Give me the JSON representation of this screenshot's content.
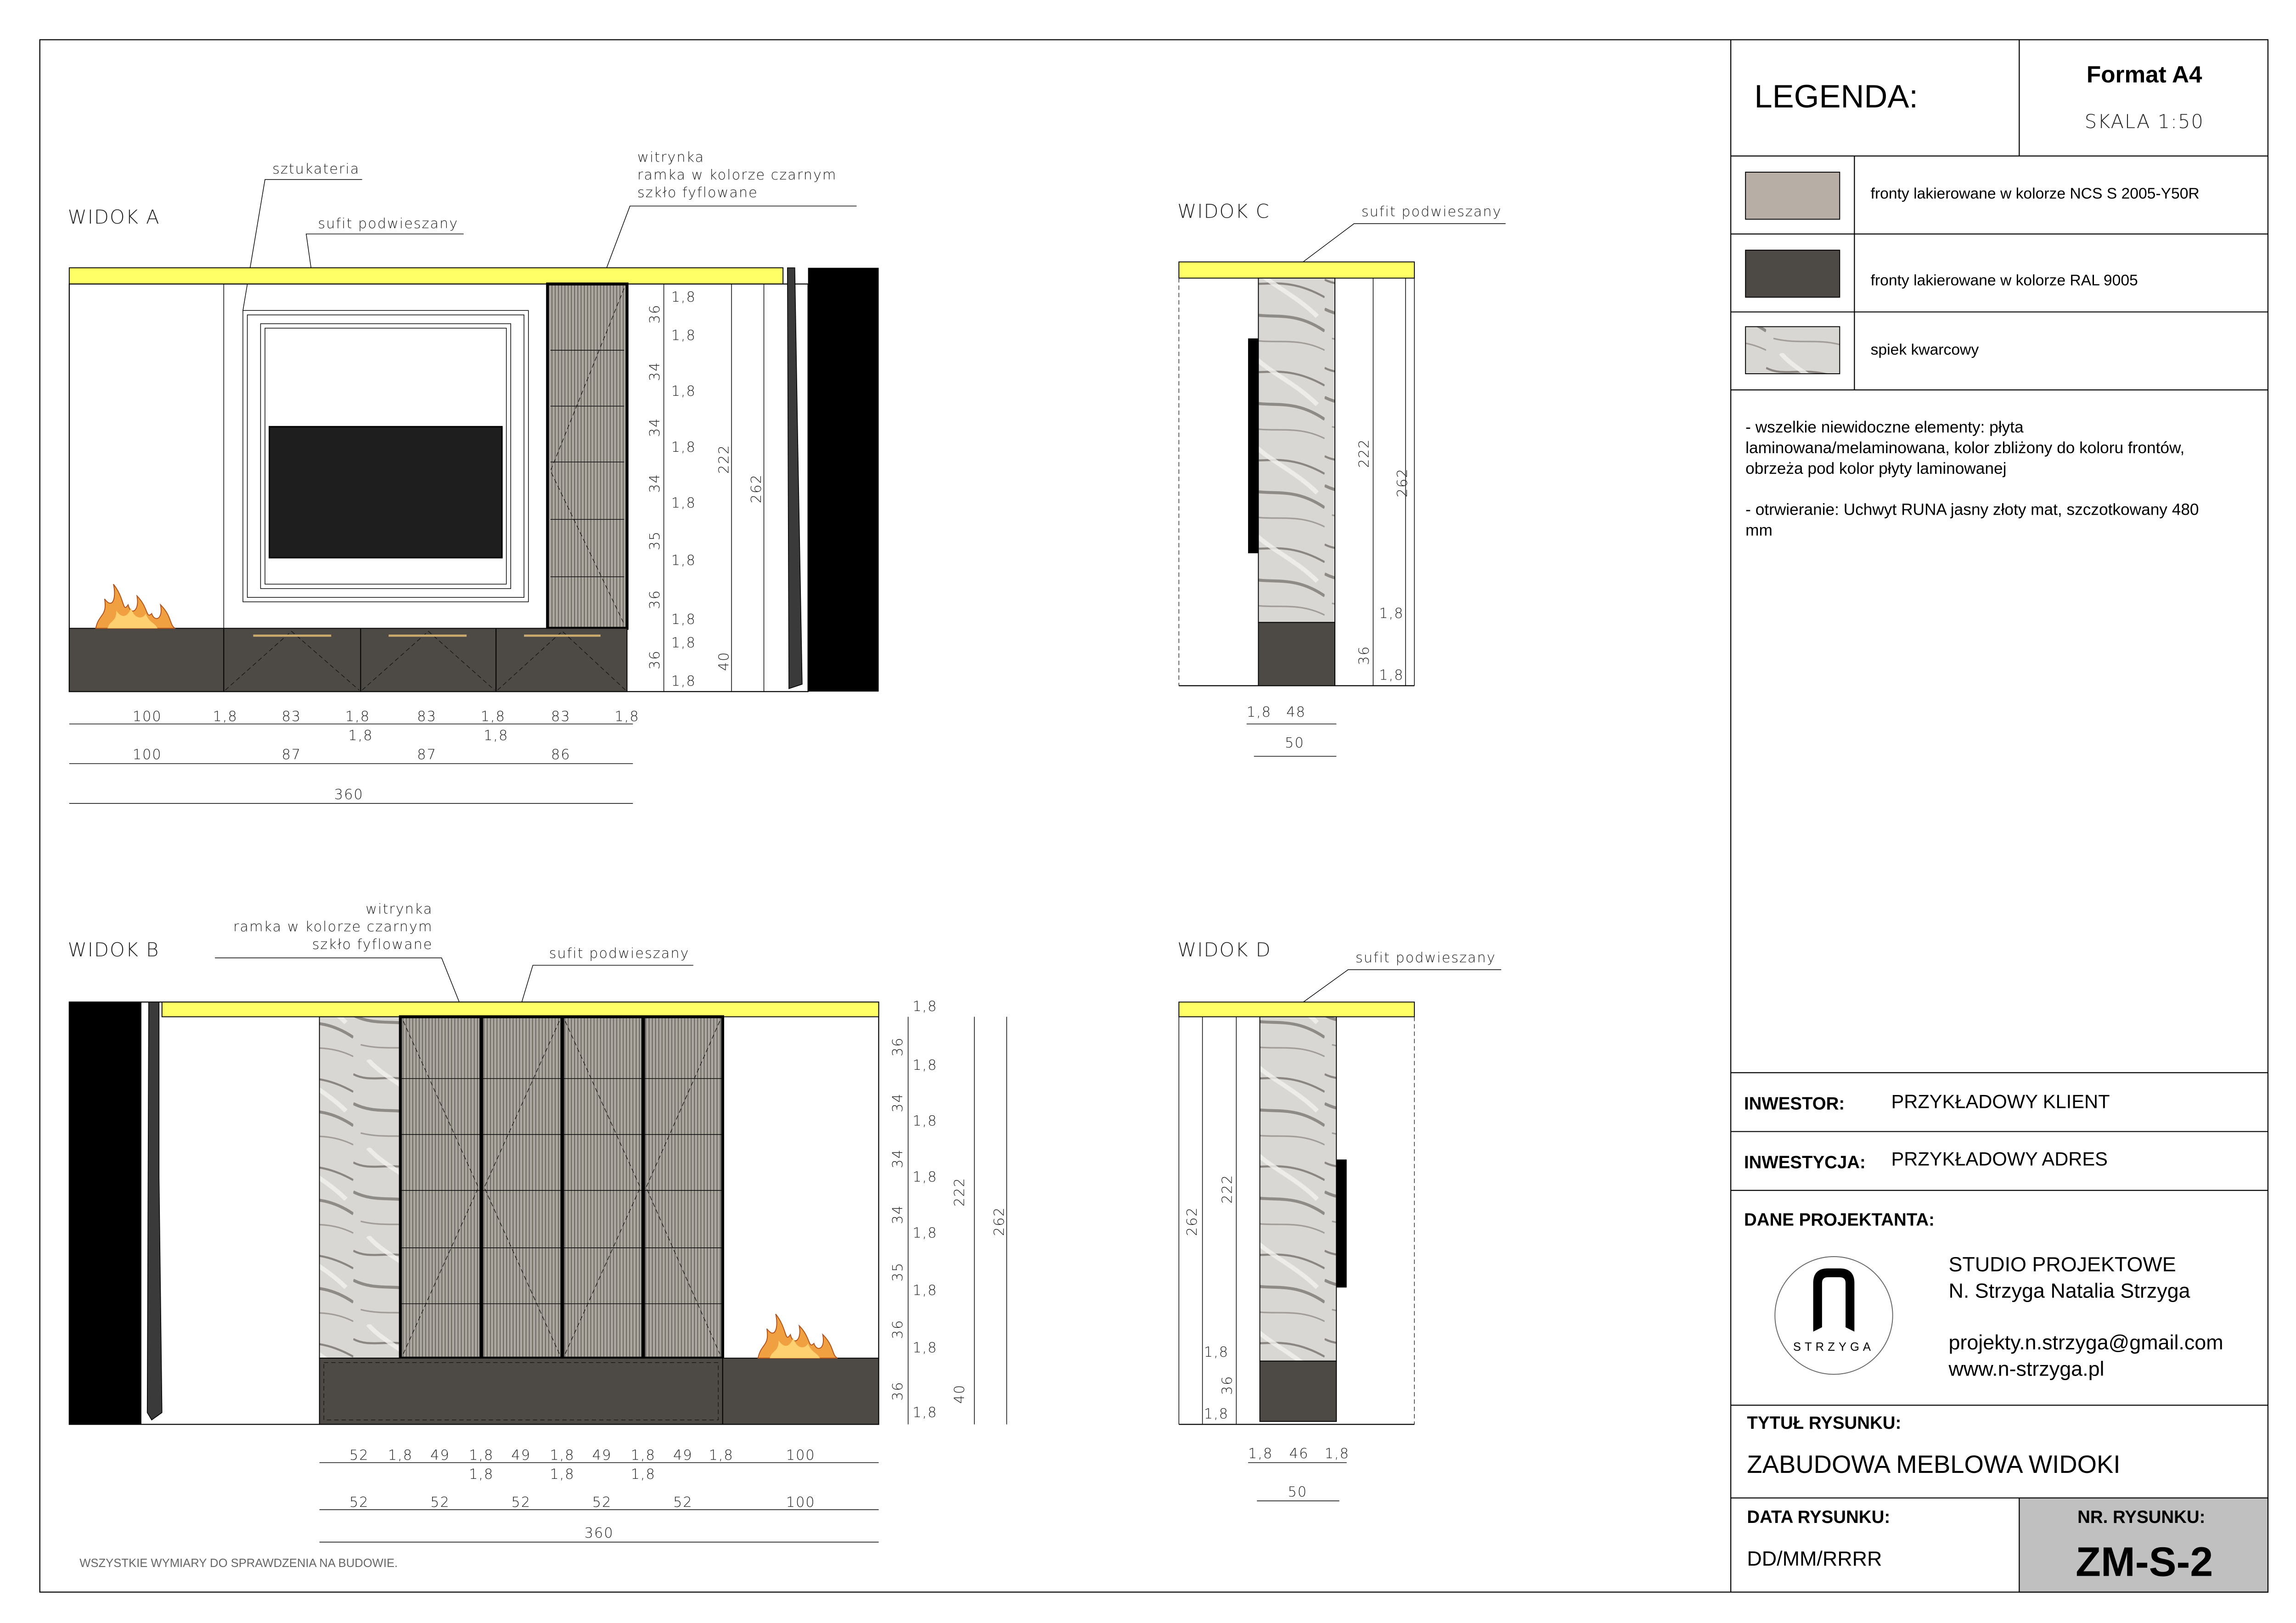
{
  "legend": {
    "title": "LEGENDA:",
    "format": "Format A4",
    "scale": "SKALA  1:50",
    "items": [
      {
        "label": "fronty lakierowane w kolorze NCS S 2005-Y50R",
        "color": "#b7aea6"
      },
      {
        "label": "fronty lakierowane w kolorze RAL 9005",
        "color": "#4d4a45"
      },
      {
        "label": "spiek kwarcowy",
        "color": "#d8d6d2"
      }
    ],
    "notes": [
      "- wszelkie niewidoczne elementy: płyta",
      "laminowana/melaminowana, kolor zbliżony do koloru frontów,",
      "obrzeża pod kolor płyty laminowanej",
      "- otrwieranie: Uchwyt RUNA jasny złoty mat, szczotkowany 480",
      "mm"
    ]
  },
  "title_block": {
    "investor_label": "INWESTOR:",
    "investor": "PRZYKŁADOWY KLIENT",
    "investment_label": "INWESTYCJA:",
    "investment": "PRZYKŁADOWY ADRES",
    "designer_label": "DANE PROJEKTANTA:",
    "designer_lines": [
      "STUDIO PROJEKTOWE",
      "N. Strzyga Natalia Strzyga",
      "projekty.n.strzyga@gmail.com",
      "www.n-strzyga.pl"
    ],
    "logo_text": "STRZYGA",
    "drawing_title_label": "TYTUŁ RYSUNKU:",
    "drawing_title": "ZABUDOWA MEBLOWA WIDOKI",
    "date_label": "DATA RYSUNKU:",
    "date": "DD/MM/RRRR",
    "number_label": "NR. RYSUNKU:",
    "number": "ZM-S-2"
  },
  "colors": {
    "ceiling": "#ffff66",
    "dark_front": "#4d4a45",
    "glass": "#aaa59d",
    "title_gray": "#c0c0c0"
  },
  "views": {
    "a": {
      "title": "WIDOK  A",
      "notes": {
        "stucco": "sztukateria",
        "ceiling": "sufit  podwieszany",
        "vitrine": [
          "witrynka",
          "ramka  w  kolorze  czarnym",
          "szkło  fyflowane"
        ]
      },
      "dims_vertical": [
        "36",
        "34",
        "34",
        "34",
        "35",
        "36",
        "36"
      ],
      "dims_thk": [
        "1,8",
        "1,8",
        "1,8",
        "1,8",
        "1,8",
        "1,8",
        "1,8",
        "1,8",
        "1,8"
      ],
      "dims_heights": [
        "222",
        "262",
        "40"
      ],
      "dims_row1": [
        "100",
        "1,8",
        "83",
        "1,8",
        "83",
        "1,8",
        "83",
        "1,8"
      ],
      "dims_row1_sub": [
        "1,8",
        "1,8"
      ],
      "dims_row2": [
        "100",
        "87",
        "87",
        "86"
      ],
      "total": "360"
    },
    "b": {
      "title": "WIDOK  B",
      "notes": {
        "ceiling": "sufit  podwieszany",
        "vitrine": [
          "witrynka",
          "ramka  w  kolorze  czarnym",
          "szkło  fyflowane"
        ]
      },
      "dims_vertical": [
        "36",
        "34",
        "34",
        "34",
        "35",
        "36",
        "36"
      ],
      "dims_thk": [
        "1,8",
        "1,8",
        "1,8",
        "1,8",
        "1,8",
        "1,8",
        "1,8",
        "1,8"
      ],
      "dims_heights": [
        "222",
        "262",
        "40"
      ],
      "dims_row1": [
        "52",
        "1,8",
        "49",
        "1,8",
        "49",
        "1,8",
        "49",
        "1,8",
        "49",
        "1,8",
        "100"
      ],
      "dims_row1_sub": [
        "1,8",
        "1,8",
        "1,8"
      ],
      "dims_row2": [
        "52",
        "52",
        "52",
        "52",
        "52",
        "100"
      ],
      "total": "360",
      "footnote": "WSZYSTKIE WYMIARY DO SPRAWDZENIA NA BUDOWIE."
    },
    "c": {
      "title": "WIDOK  C",
      "notes": {
        "ceiling": "sufit  podwieszany"
      },
      "dims_heights": [
        "222",
        "262",
        "36"
      ],
      "dims_thk": [
        "1,8",
        "1,8"
      ],
      "dims_row1": [
        "1,8",
        "48"
      ],
      "total": "50"
    },
    "d": {
      "title": "WIDOK  D",
      "notes": {
        "ceiling": "sufit  podwieszany"
      },
      "dims_heights": [
        "262",
        "222",
        "36"
      ],
      "dims_thk": [
        "1,8",
        "1,8"
      ],
      "dims_row1": [
        "1,8",
        "46",
        "1,8"
      ],
      "total": "50"
    }
  }
}
